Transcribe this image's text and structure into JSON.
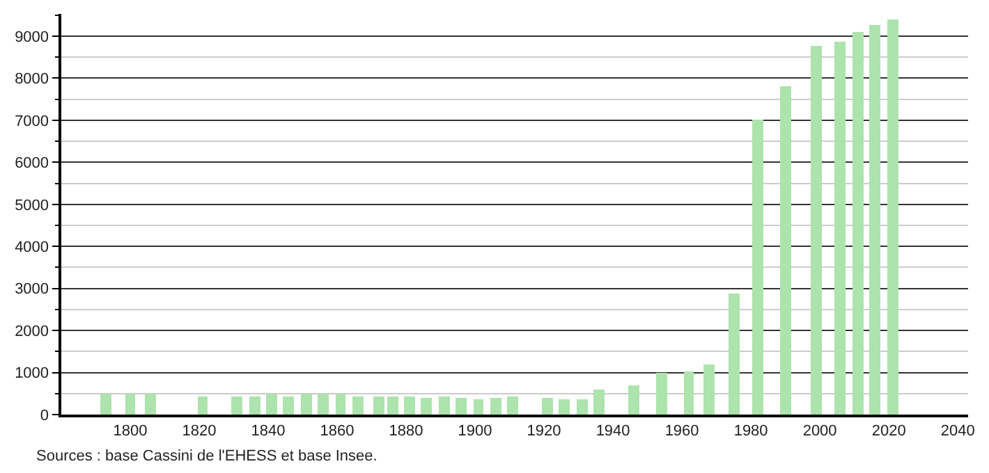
{
  "chart_data": {
    "type": "bar",
    "x": [
      1793,
      1800,
      1806,
      1821,
      1831,
      1836,
      1841,
      1846,
      1851,
      1856,
      1861,
      1866,
      1872,
      1876,
      1881,
      1886,
      1891,
      1896,
      1901,
      1906,
      1911,
      1921,
      1926,
      1931,
      1936,
      1946,
      1954,
      1962,
      1968,
      1975,
      1982,
      1990,
      1999,
      2006,
      2011,
      2016,
      2021
    ],
    "values": [
      480,
      480,
      480,
      440,
      440,
      440,
      480,
      440,
      480,
      490,
      480,
      440,
      440,
      440,
      440,
      400,
      440,
      400,
      360,
      400,
      440,
      400,
      360,
      360,
      600,
      700,
      980,
      1030,
      1200,
      2890,
      7030,
      7820,
      8760,
      8870,
      9090,
      9250,
      9390
    ],
    "color": "#ade3ad",
    "xlim": [
      1780,
      2043
    ],
    "xticks": [
      1800,
      1820,
      1840,
      1860,
      1880,
      1900,
      1920,
      1940,
      1960,
      1980,
      2000,
      2020,
      2040
    ],
    "ylim": [
      0,
      9530
    ],
    "yticks": [
      0,
      {
        "value": 500,
        "label": null
      },
      1000,
      {
        "value": 1500,
        "label": null
      },
      2000,
      {
        "value": 2500,
        "label": null
      },
      3000,
      {
        "value": 3500,
        "label": null
      },
      4000,
      {
        "value": 4500,
        "label": null
      },
      5000,
      {
        "value": 5500,
        "label": null
      },
      6000,
      {
        "value": 6500,
        "label": null
      },
      7000,
      {
        "value": 7500,
        "label": null
      },
      8000,
      {
        "value": 8500,
        "label": null
      },
      9000,
      {
        "value": 9500,
        "label": null
      }
    ],
    "grid": "y",
    "annotations": [
      "Sources : base Cassini de l'EHESS et base Insee."
    ]
  }
}
